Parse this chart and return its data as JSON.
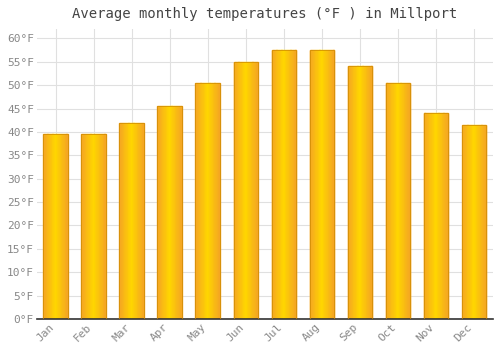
{
  "title": "Average monthly temperatures (°F ) in Millport",
  "months": [
    "Jan",
    "Feb",
    "Mar",
    "Apr",
    "May",
    "Jun",
    "Jul",
    "Aug",
    "Sep",
    "Oct",
    "Nov",
    "Dec"
  ],
  "values": [
    39.5,
    39.5,
    42.0,
    45.5,
    50.5,
    55.0,
    57.5,
    57.5,
    54.0,
    50.5,
    44.0,
    41.5
  ],
  "bar_color_center": "#FFC300",
  "bar_color_edge": "#F5A623",
  "background_color": "#FFFFFF",
  "plot_bg_color": "#FFFFFF",
  "grid_color": "#E0E0E0",
  "text_color": "#888888",
  "axis_color": "#333333",
  "ylim": [
    0,
    62
  ],
  "ytick_values": [
    0,
    5,
    10,
    15,
    20,
    25,
    30,
    35,
    40,
    45,
    50,
    55,
    60
  ],
  "title_fontsize": 10,
  "tick_fontsize": 8,
  "font_family": "monospace",
  "bar_width": 0.65
}
